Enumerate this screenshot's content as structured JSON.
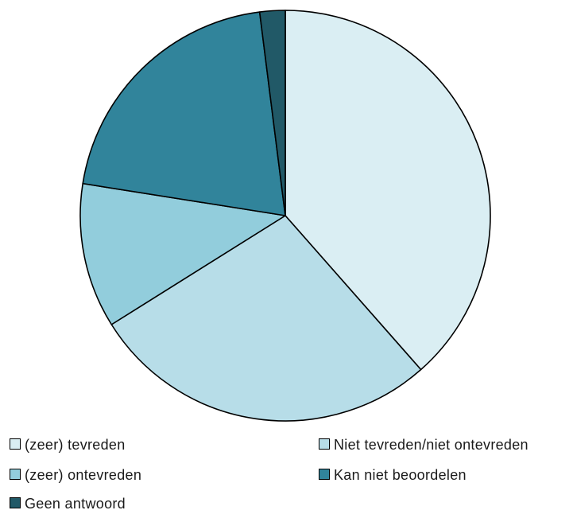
{
  "chart_data": {
    "type": "pie",
    "title": "",
    "slices": [
      {
        "label": "(zeer) tevreden",
        "value": 38.5,
        "color": "#DAEEF3"
      },
      {
        "label": "Niet tevreden/niet ontevreden",
        "value": 27.6,
        "color": "#B7DDE8"
      },
      {
        "label": "(zeer) ontevreden",
        "value": 11.4,
        "color": "#92CDDC"
      },
      {
        "label": "Kan niet beoordelen",
        "value": 20.5,
        "color": "#31849B"
      },
      {
        "label": "Geen antwoord",
        "value": 2.0,
        "color": "#215967"
      }
    ],
    "start_angle_deg": 0,
    "direction": "clockwise",
    "legend_position": "bottom",
    "slice_border_color": "#000000"
  }
}
